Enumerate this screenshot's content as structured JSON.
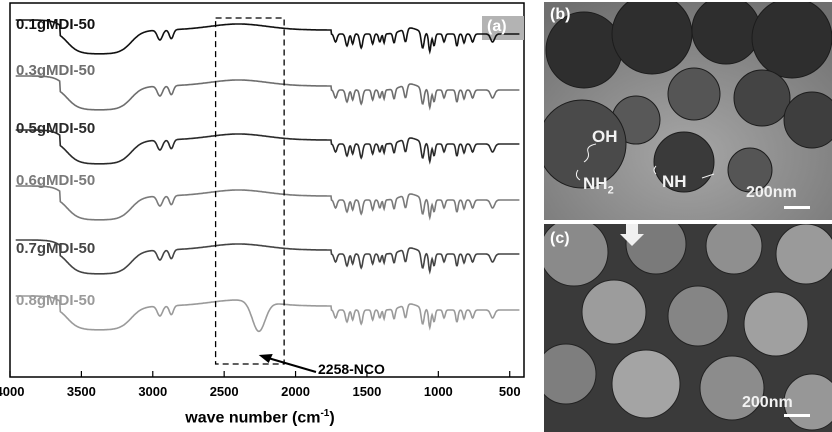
{
  "panel_a": {
    "tag": "(a)",
    "xlabel_main": "wave number (cm",
    "xlabel_sup": "-1",
    "xlabel_close": ")",
    "annotation": "2258-NCO",
    "chart_data": {
      "type": "line",
      "xlabel": "wave number (cm-1)",
      "xlim": [
        4000,
        400
      ],
      "x_reversed": true,
      "xticks": [
        4000,
        3500,
        3000,
        2500,
        2000,
        1500,
        1000,
        500
      ],
      "xtick_labels": [
        "4000",
        "3500",
        "3000",
        "2500",
        "2000",
        "1500",
        "1000",
        "500"
      ],
      "highlight_box": {
        "x_from": 2560,
        "x_to": 2080,
        "style": "dashed"
      },
      "annotations": [
        {
          "text": "2258-NCO",
          "x": 2258
        }
      ],
      "series": [
        {
          "name": "0.1gMDI-50",
          "color": "#111111",
          "has_nco_peak": false
        },
        {
          "name": "0.3gMDI-50",
          "color": "#6e6e6e",
          "has_nco_peak": false
        },
        {
          "name": "0.5gMDI-50",
          "color": "#2a2a2a",
          "has_nco_peak": false
        },
        {
          "name": "0.6gMDI-50",
          "color": "#7a7a7a",
          "has_nco_peak": false
        },
        {
          "name": "0.7gMDI-50",
          "color": "#444444",
          "has_nco_peak": false
        },
        {
          "name": "0.8gMDI-50",
          "color": "#9a9a9a",
          "has_nco_peak": true
        }
      ],
      "grid": false
    }
  },
  "panel_b": {
    "tag": "(b)",
    "labels": {
      "oh": "OH",
      "nh2_main": "NH",
      "nh2_sub": "2",
      "nh": "NH"
    },
    "scale": "200nm"
  },
  "panel_c": {
    "tag": "(c)",
    "scale": "200nm"
  },
  "colors": {
    "tag_box": "#b3b3b3",
    "tem_bg": "#9a9a9a",
    "sem_bg": "#3a3a3a"
  }
}
